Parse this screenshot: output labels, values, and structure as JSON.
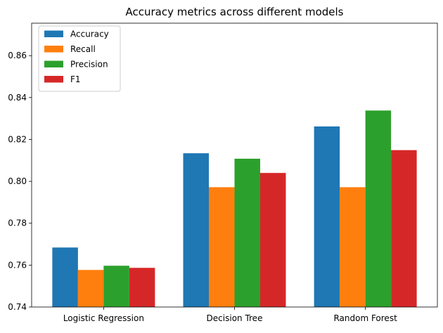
{
  "chart_data": {
    "type": "bar",
    "title": "Accuracy metrics across different models",
    "xlabel": "",
    "ylabel": "",
    "categories": [
      "Logistic Regression",
      "Decision Tree",
      "Random Forest"
    ],
    "series": [
      {
        "name": "Accuracy",
        "color": "#1f77b4",
        "values": [
          0.7684,
          0.8134,
          0.8262
        ]
      },
      {
        "name": "Recall",
        "color": "#ff7f0e",
        "values": [
          0.7577,
          0.7972,
          0.7972
        ]
      },
      {
        "name": "Precision",
        "color": "#2ca02c",
        "values": [
          0.7597,
          0.8108,
          0.8338
        ]
      },
      {
        "name": "F1",
        "color": "#d62728",
        "values": [
          0.7587,
          0.804,
          0.8149
        ]
      }
    ],
    "ylim": [
      0.74,
      0.8755
    ],
    "yticks": [
      "0.74",
      "0.76",
      "0.78",
      "0.80",
      "0.82",
      "0.84",
      "0.86"
    ],
    "grid": false,
    "legend_position": "top-left"
  }
}
